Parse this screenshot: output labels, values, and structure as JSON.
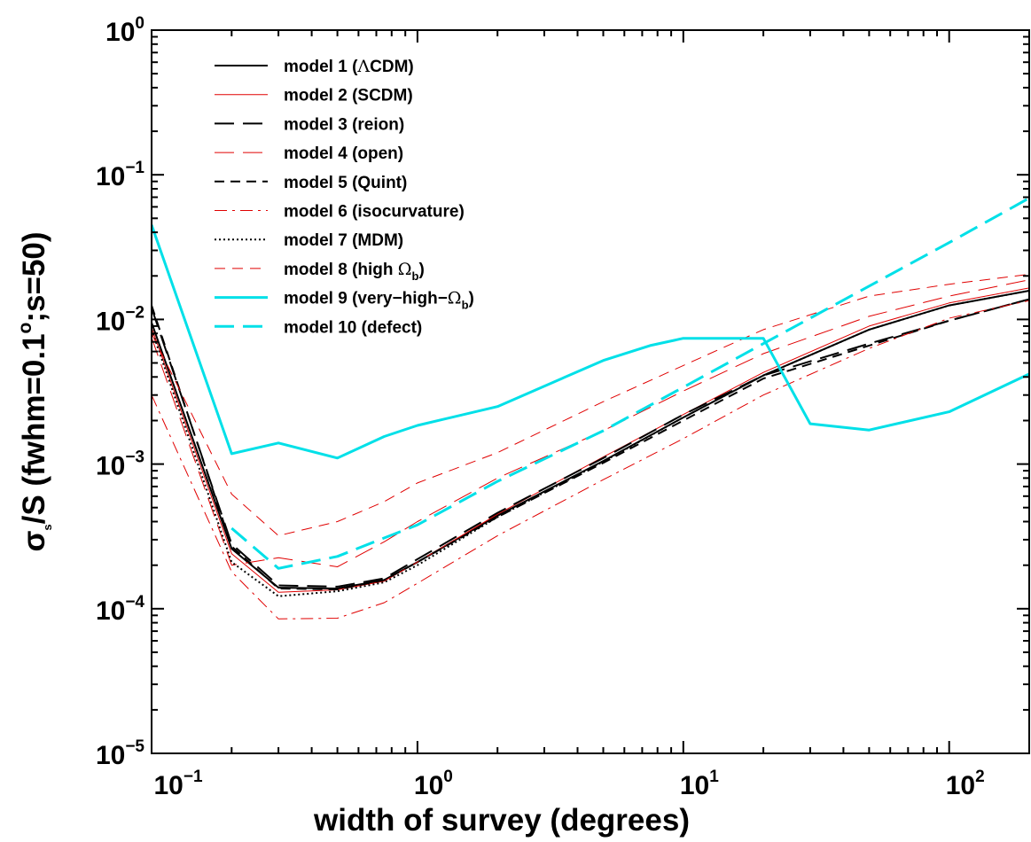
{
  "chart_data": {
    "type": "line",
    "x_scale": "log",
    "y_scale": "log",
    "xlim": [
      0.1,
      200
    ],
    "ylim": [
      1e-05,
      1
    ],
    "grid": false,
    "legend_position": "top-left",
    "xlabel": "width of survey (degrees)",
    "ylabel": {
      "sigma": "σ",
      "sub": "s",
      "middle": "/S (fwhm=0.1",
      "degree": "o",
      "end": ";s=50)"
    },
    "x_ticks": [
      {
        "value": 0.1,
        "base": "10",
        "exp": "−1"
      },
      {
        "value": 1,
        "base": "10",
        "exp": "0"
      },
      {
        "value": 10,
        "base": "10",
        "exp": "1"
      },
      {
        "value": 100,
        "base": "10",
        "exp": "2"
      }
    ],
    "y_ticks": [
      {
        "value": 1,
        "base": "10",
        "exp": "0"
      },
      {
        "value": 0.1,
        "base": "10",
        "exp": "−1"
      },
      {
        "value": 0.01,
        "base": "10",
        "exp": "−2"
      },
      {
        "value": 0.001,
        "base": "10",
        "exp": "−3"
      },
      {
        "value": 0.0001,
        "base": "10",
        "exp": "−4"
      },
      {
        "value": 1e-05,
        "base": "10",
        "exp": "−5"
      }
    ],
    "series": [
      {
        "name": "model 1 (ΛCDM)",
        "label_parts": [
          "model 1 (",
          "Λ",
          "CDM)"
        ],
        "color": "#000000",
        "dash": "solid",
        "width": 2,
        "x": [
          0.1,
          0.2,
          0.3,
          0.5,
          0.75,
          1,
          2,
          5,
          10,
          20,
          50,
          100,
          200
        ],
        "y": [
          0.0095,
          0.00026,
          0.00014,
          0.000138,
          0.000158,
          0.00021,
          0.00044,
          0.00105,
          0.0021,
          0.0041,
          0.0085,
          0.0125,
          0.0158
        ]
      },
      {
        "name": "model 2 (SCDM)",
        "label_parts": [
          "model 2 (SCDM)"
        ],
        "color": "#e00000",
        "dash": "solid",
        "width": 1,
        "x": [
          0.1,
          0.2,
          0.3,
          0.5,
          0.75,
          1,
          2,
          5,
          10,
          20,
          50,
          100,
          200
        ],
        "y": [
          0.0088,
          0.00024,
          0.00013,
          0.000135,
          0.000155,
          0.00021,
          0.00045,
          0.00112,
          0.0022,
          0.0043,
          0.009,
          0.013,
          0.0165
        ]
      },
      {
        "name": "model 3 (reion)",
        "label_parts": [
          "model 3 (reion)"
        ],
        "color": "#000000",
        "dash": "long",
        "width": 2,
        "x": [
          0.1,
          0.2,
          0.3,
          0.5,
          0.75,
          1,
          2,
          5,
          10,
          20,
          50,
          100,
          200
        ],
        "y": [
          0.012,
          0.00028,
          0.000145,
          0.000142,
          0.000162,
          0.00022,
          0.00046,
          0.0011,
          0.0022,
          0.0041,
          0.0068,
          0.0098,
          0.0138
        ]
      },
      {
        "name": "model 4 (open)",
        "label_parts": [
          "model 4 (open)"
        ],
        "color": "#e00000",
        "dash": "long",
        "width": 1,
        "x": [
          0.1,
          0.2,
          0.3,
          0.5,
          0.75,
          1,
          2,
          5,
          10,
          20,
          50,
          100,
          200
        ],
        "y": [
          0.0075,
          0.0002,
          0.000225,
          0.000195,
          0.00029,
          0.0004,
          0.0008,
          0.0017,
          0.0032,
          0.0058,
          0.0105,
          0.0145,
          0.0188
        ]
      },
      {
        "name": "model 5 (Quint)",
        "label_parts": [
          "model 5 (Quint)"
        ],
        "color": "#000000",
        "dash": "short",
        "width": 2,
        "x": [
          0.1,
          0.2,
          0.3,
          0.5,
          0.75,
          1,
          2,
          5,
          10,
          20,
          50,
          100,
          200
        ],
        "y": [
          0.0125,
          0.00027,
          0.000138,
          0.000136,
          0.000158,
          0.00021,
          0.00043,
          0.00102,
          0.002,
          0.0039,
          0.0066,
          0.0098,
          0.0138
        ]
      },
      {
        "name": "model 6 (isocurvature)",
        "label_parts": [
          "model 6 (isocurvature)"
        ],
        "color": "#e00000",
        "dash": "dashdot",
        "width": 1,
        "x": [
          0.1,
          0.2,
          0.3,
          0.5,
          0.75,
          1,
          2,
          5,
          10,
          20,
          50,
          100,
          200
        ],
        "y": [
          0.003,
          0.00018,
          8.5e-05,
          8.6e-05,
          0.00011,
          0.00015,
          0.00032,
          0.00078,
          0.0015,
          0.003,
          0.0063,
          0.0102,
          0.0135
        ]
      },
      {
        "name": "model 7 (MDM)",
        "label_parts": [
          "model 7 (MDM)"
        ],
        "color": "#000000",
        "dash": "dotted",
        "width": 2,
        "x": [
          0.1,
          0.2,
          0.3,
          0.5,
          0.75,
          1,
          2,
          5,
          10,
          20,
          50,
          100,
          200
        ],
        "y": [
          0.0085,
          0.00021,
          0.000122,
          0.000132,
          0.000152,
          0.0002,
          0.00043,
          0.00104,
          0.0021,
          0.0041,
          0.0085,
          0.0125,
          0.0158
        ]
      },
      {
        "name": "model 8 (high Ωb)",
        "label_parts": [
          "model 8 (high ",
          "Ω",
          "b",
          ")"
        ],
        "color": "#e00000",
        "dash": "medium",
        "width": 1,
        "x": [
          0.1,
          0.2,
          0.3,
          0.5,
          0.75,
          1,
          2,
          5,
          10,
          20,
          50,
          100,
          200
        ],
        "y": [
          0.008,
          0.00062,
          0.00032,
          0.0004,
          0.00055,
          0.00074,
          0.0012,
          0.0027,
          0.0048,
          0.0085,
          0.0145,
          0.0175,
          0.0205
        ]
      },
      {
        "name": "model 9 (very−high−Ωb)",
        "label_parts": [
          "model 9 (very−high−",
          "Ω",
          "b",
          ")"
        ],
        "color": "#00e0e8",
        "dash": "solid",
        "width": 3,
        "x": [
          0.1,
          0.2,
          0.3,
          0.5,
          0.75,
          1,
          2,
          5,
          7.5,
          10,
          20,
          30,
          50,
          100,
          200
        ],
        "y": [
          0.045,
          0.00118,
          0.0014,
          0.0011,
          0.00155,
          0.00185,
          0.0025,
          0.0052,
          0.0066,
          0.0074,
          0.0074,
          0.0019,
          0.00172,
          0.0023,
          0.0042
        ]
      },
      {
        "name": "model 10 (defect)",
        "label_parts": [
          "model 10 (defect)"
        ],
        "color": "#00e0e8",
        "dash": "long",
        "width": 3,
        "x": [
          0.2,
          0.3,
          0.5,
          1,
          2,
          5,
          10,
          20,
          50,
          100,
          200
        ],
        "y": [
          0.00036,
          0.00019,
          0.00023,
          0.00038,
          0.00076,
          0.0017,
          0.0034,
          0.0068,
          0.017,
          0.034,
          0.069
        ]
      }
    ]
  }
}
